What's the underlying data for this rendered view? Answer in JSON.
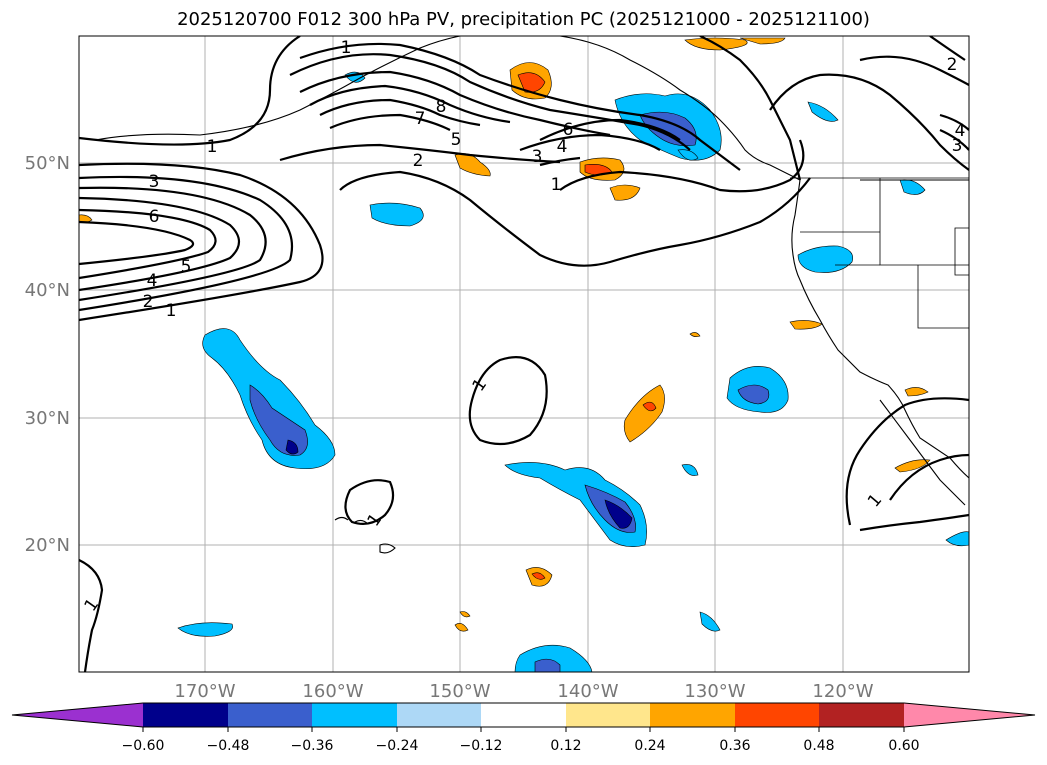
{
  "title": "2025120700 F012 300 hPa PV, precipitation PC (2025121000 - 2025121100)",
  "lat_labels": [
    "50°N",
    "40°N",
    "30°N",
    "20°N"
  ],
  "lon_labels": [
    "170°W",
    "160°W",
    "150°W",
    "140°W",
    "130°W",
    "120°W"
  ],
  "contour_labels": [
    "1",
    "3",
    "6",
    "5",
    "4",
    "2",
    "1",
    "1",
    "8",
    "7",
    "5",
    "2",
    "3",
    "6",
    "4",
    "1",
    "1",
    "1",
    "1",
    "1",
    "2",
    "4",
    "3"
  ],
  "colorbar": {
    "ticks": [
      "−0.60",
      "−0.48",
      "−0.36",
      "−0.24",
      "−0.12",
      "0.12",
      "0.24",
      "0.36",
      "0.48",
      "0.60"
    ],
    "colors": [
      "#9b30d0",
      "#00008b",
      "#3a5fcd",
      "#00bfff",
      "#add8f6",
      "#ffffff",
      "#ffe68c",
      "#ffa500",
      "#ff4500",
      "#b22222",
      "#ff88aa"
    ]
  }
}
